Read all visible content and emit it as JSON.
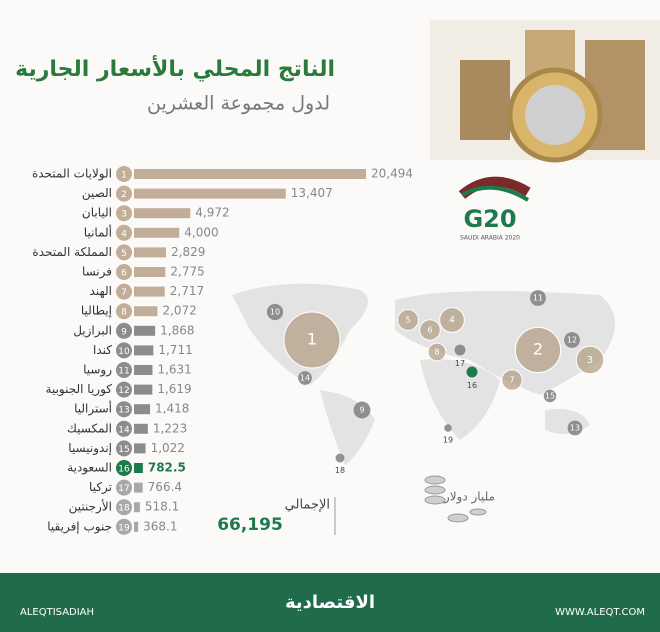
{
  "chart_data": {
    "type": "bar",
    "orientation": "horizontal",
    "title": "الناتج المحلي بالأسعار الجارية",
    "subtitle": "لدول مجموعة العشرين",
    "unit": "مليار دولار",
    "total_label": "الإجمالي",
    "total": {
      "value": 66195,
      "label": "66,195"
    },
    "categories": [
      "الولايات المتحدة",
      "الصين",
      "اليابان",
      "ألمانيا",
      "المملكة المتحدة",
      "فرنسا",
      "الهند",
      "إيطاليا",
      "البرازيل",
      "كندا",
      "روسيا",
      "كوريا الجنوبية",
      "أستراليا",
      "المكسيك",
      "إندونيسيا",
      "السعودية",
      "تركيا",
      "الأرجنتين",
      "جنوب إفريقيا"
    ],
    "ranks": [
      "1",
      "2",
      "3",
      "4",
      "5",
      "6",
      "7",
      "8",
      "9",
      "10",
      "11",
      "12",
      "13",
      "14",
      "15",
      "16",
      "17",
      "18",
      "19"
    ],
    "values": [
      20494,
      13407,
      4972,
      4000,
      2829,
      2775,
      2717,
      2072,
      1868,
      1711,
      1631,
      1619,
      1418,
      1223,
      1022,
      782.5,
      766.4,
      518.1,
      368.1
    ],
    "value_labels": [
      "20,494",
      "13,407",
      "4,972",
      "4,000",
      "2,829",
      "2,775",
      "2,717",
      "2,072",
      "1,868",
      "1,711",
      "1,631",
      "1,619",
      "1,418",
      "1,223",
      "1,022",
      "782.5",
      "766.4",
      "518.1",
      "368.1"
    ],
    "colors": [
      "#c2ae98",
      "#c2ae98",
      "#c2ae98",
      "#c2ae98",
      "#c2ae98",
      "#c2ae98",
      "#c2ae98",
      "#c2ae98",
      "#8c8c8c",
      "#8c8c8c",
      "#8c8c8c",
      "#8c8c8c",
      "#8c8c8c",
      "#8c8c8c",
      "#8c8c8c",
      "#1d7a4c",
      "#a8a8a8",
      "#a8a8a8",
      "#a8a8a8"
    ],
    "xlim": [
      0,
      20494
    ],
    "logo": {
      "text": "G20",
      "subtext": "SAUDI ARABIA 2020"
    },
    "footer": {
      "brand": "الاقتصادية",
      "website": "WWW.ALEQT.COM",
      "handle": "ALEQTISADIAH"
    }
  }
}
